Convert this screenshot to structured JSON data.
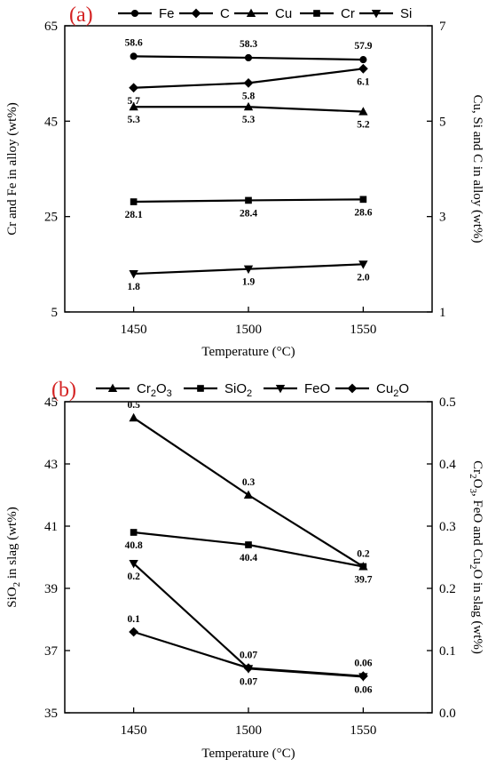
{
  "chart_data": [
    {
      "type": "line",
      "panel_label": "(a)",
      "xlabel": "Temperature (°C)",
      "ylabel_left": "Cr and Fe in alloy (wt%)",
      "ylabel_right": "Cu, Si and C in alloy (wt%)",
      "x": [
        1450,
        1500,
        1550
      ],
      "xlim": [
        1420,
        1580
      ],
      "ylim_left": [
        5,
        65
      ],
      "ylim_right": [
        1,
        7
      ],
      "yticks_left": [
        5,
        25,
        45,
        65
      ],
      "yticks_right": [
        1,
        3,
        5,
        7
      ],
      "xticks": [
        1450,
        1500,
        1550
      ],
      "legend_position": "top",
      "series": [
        {
          "name": "Fe",
          "marker": "circle",
          "axis": "left",
          "values": [
            58.6,
            58.3,
            57.9
          ],
          "labels": [
            "58.6",
            "58.3",
            "57.9"
          ],
          "label_pos": "above"
        },
        {
          "name": "C",
          "marker": "diamond",
          "axis": "right",
          "values": [
            5.7,
            5.8,
            6.1
          ],
          "labels": [
            "5.7",
            "5.8",
            "6.1"
          ],
          "label_pos": "below"
        },
        {
          "name": "Cu",
          "marker": "triangle-up",
          "axis": "right",
          "values": [
            5.3,
            5.3,
            5.2
          ],
          "labels": [
            "5.3",
            "5.3",
            "5.2"
          ],
          "label_pos": "below"
        },
        {
          "name": "Cr",
          "marker": "square",
          "axis": "left",
          "values": [
            28.1,
            28.4,
            28.6
          ],
          "labels": [
            "28.1",
            "28.4",
            "28.6"
          ],
          "label_pos": "below"
        },
        {
          "name": "Si",
          "marker": "triangle-down",
          "axis": "right",
          "values": [
            1.8,
            1.9,
            2.0
          ],
          "labels": [
            "1.8",
            "1.9",
            "2.0"
          ],
          "label_pos": "below"
        }
      ]
    },
    {
      "type": "line",
      "panel_label": "(b)",
      "xlabel": "Temperature (°C)",
      "ylabel_left": "SiO2 in slag (wt%)",
      "ylabel_right": "Cr2O3, FeO and Cu2O in slag (wt%)",
      "x": [
        1450,
        1500,
        1550
      ],
      "xlim": [
        1420,
        1580
      ],
      "ylim_left": [
        35,
        45
      ],
      "ylim_right": [
        0.0,
        0.5
      ],
      "yticks_left": [
        35,
        37,
        39,
        41,
        43,
        45
      ],
      "yticks_right": [
        0.0,
        0.1,
        0.2,
        0.3,
        0.4,
        0.5
      ],
      "xticks": [
        1450,
        1500,
        1550
      ],
      "legend_position": "top",
      "series": [
        {
          "name": "Cr2O3",
          "marker": "triangle-up",
          "axis": "right",
          "values": [
            0.474,
            0.35,
            0.235
          ],
          "labels": [
            "0.5",
            "0.3",
            "0.2"
          ],
          "label_pos": "above"
        },
        {
          "name": "SiO2",
          "marker": "square",
          "axis": "left",
          "values": [
            40.8,
            40.4,
            39.7
          ],
          "labels": [
            "40.8",
            "40.4",
            "39.7"
          ],
          "label_pos": "below"
        },
        {
          "name": "FeO",
          "marker": "triangle-down",
          "axis": "right",
          "values": [
            0.24,
            0.071,
            0.058
          ],
          "labels": [
            "0.2",
            "0.07",
            "0.06"
          ],
          "label_pos": "below"
        },
        {
          "name": "Cu2O",
          "marker": "diamond",
          "axis": "right",
          "values": [
            0.13,
            0.072,
            0.059
          ],
          "labels": [
            "0.1",
            "0.07",
            "0.06"
          ],
          "label_pos": "above"
        }
      ]
    }
  ]
}
